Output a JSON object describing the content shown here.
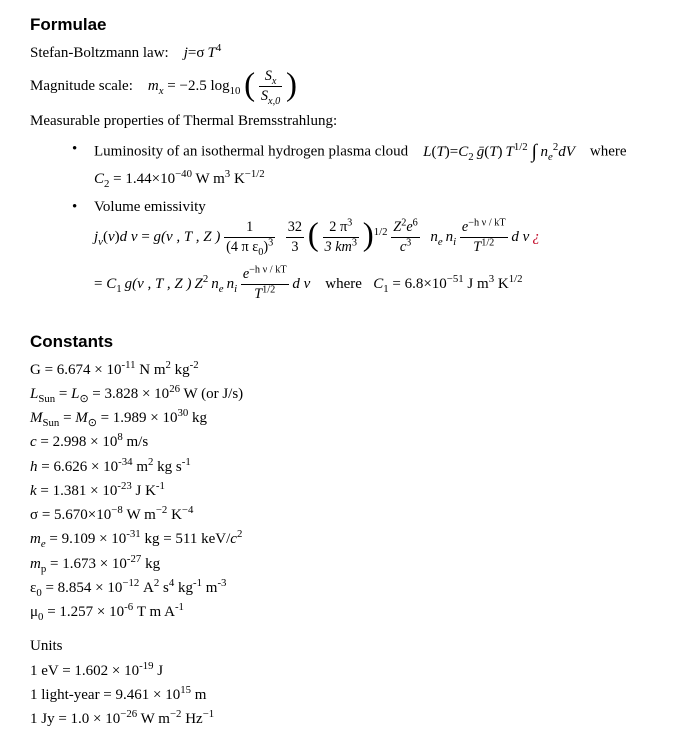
{
  "formulae": {
    "heading": "Formulae",
    "stefan": {
      "label": "Stefan-Boltzmann law:",
      "eq_pre": "j",
      "eq_mid": "=",
      "sigma": "σ",
      "T": "T",
      "exp": "4"
    },
    "magnitude": {
      "label": "Magnitude scale:",
      "m": "m",
      "sub": "x",
      "eq": "= −2.5 log",
      "base": "10",
      "num": "S",
      "num_sub": "x",
      "den": "S",
      "den_sub": "x,0"
    },
    "brems_intro": "Measurable properties of Thermal Bremsstrahlung:",
    "luminosity": {
      "text1": "Luminosity of an isothermal hydrogen plasma cloud",
      "L": "L",
      "T": "T",
      "eq": "=",
      "C2": "C",
      "two": "2",
      "gbar": "ḡ",
      "Texp": "1/2",
      "int": "∫",
      "ne": "n",
      "e": "e",
      "nexp": "2",
      "dV": "dV",
      "where": "where",
      "c2_line": "C",
      "c2_sub": "2",
      "c2_val": "= 1.44×10",
      "c2_exp": "−40",
      "c2_units": " W m",
      "c2_u1": "3",
      "c2_units2": " K",
      "c2_u2": "−1/2"
    },
    "volume": {
      "label": "Volume emissivity",
      "jv": "j",
      "nu": "ν",
      "dnu": "d ν",
      "eq": "=",
      "g": "g",
      "args": "(ν , T , Z )",
      "frac1_num": "1",
      "frac1_den_a": "(4 π ε",
      "frac1_den_0": "0",
      "frac1_den_b": ")",
      "frac1_den_c": "3",
      "frac2_num": "32",
      "frac2_den": "3",
      "frac3_num": "2 π",
      "frac3_num_exp": "3",
      "frac3_den": "3 km",
      "frac3_den_exp": "3",
      "half": "1/2",
      "Z2e6_num": "Z",
      "Z2": "2",
      "e": "e",
      "e6": "6",
      "c": "c",
      "c3": "3",
      "ne": "n",
      "sub_e": "e",
      "ni": "n",
      "sub_i": "i",
      "expo_num": "e",
      "expo_sup": "−h ν / kT",
      "Thalf": "T",
      "Thalf_exp": "1/2",
      "i_trail": "¿",
      "line2_pre": "=",
      "C1": "C",
      "one": "1",
      "where": "where",
      "c1_val": "= 6.8×10",
      "c1_exp": "−51",
      "c1_units": " J m",
      "c1_u1": "3",
      "c1_units2": " K",
      "c1_u2": "1/2"
    }
  },
  "constants": {
    "heading": "Constants",
    "lines": [
      "G = 6.674 × 10⁻¹¹ N m² kg⁻²",
      "LSun = L⊙ = 3.828 × 10²⁶ W (or J/s)",
      "MSun = M⊙ = 1.989 × 10³⁰ kg",
      "c = 2.998 × 10⁸ m/s",
      "h = 6.626 × 10⁻³⁴ m² kg s⁻¹",
      "k = 1.381 × 10⁻²³ J K⁻¹",
      "σ = 5.670×10⁻⁸ W m⁻² K⁻⁴",
      "mₑ = 9.109 × 10⁻³¹ kg = 511 keV/c²",
      "mₚ = 1.673 × 10⁻²⁷ kg",
      "ε₀ = 8.854 × 10⁻¹² A² s⁴ kg⁻¹ m⁻³",
      "μ₀ = 1.257 × 10⁻⁶ T m A⁻¹"
    ],
    "units_heading": "Units",
    "units": [
      "1 eV = 1.602 × 10⁻¹⁹ J",
      "1 light-year = 9.461 × 10¹⁵ m",
      "1 Jy = 1.0 × 10⁻²⁶ W m⁻² Hz⁻¹"
    ]
  }
}
